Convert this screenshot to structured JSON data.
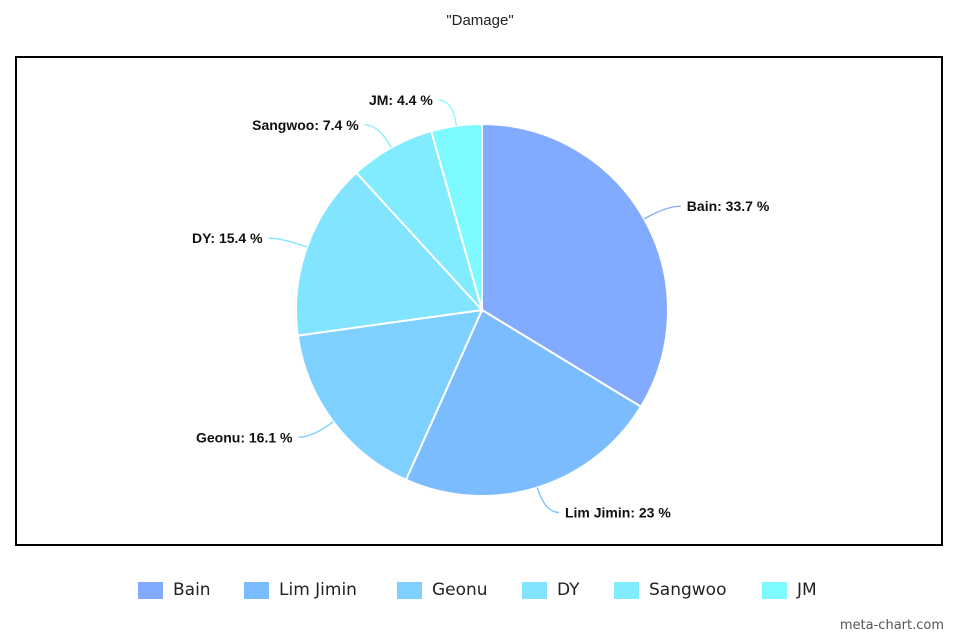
{
  "chart_data": {
    "type": "pie",
    "title": "\"Damage\"",
    "slices": [
      {
        "label": "Bain",
        "value": 33.7,
        "display": "Bain: 33.7 %",
        "color": "#82aaff"
      },
      {
        "label": "Lim Jimin",
        "value": 23,
        "display": "Lim Jimin: 23 %",
        "color": "#7bbcff"
      },
      {
        "label": "Geonu",
        "value": 16.1,
        "display": "Geonu: 16.1 %",
        "color": "#7dd0ff"
      },
      {
        "label": "DY",
        "value": 15.4,
        "display": "DY: 15.4 %",
        "color": "#82e4ff"
      },
      {
        "label": "Sangwoo",
        "value": 7.4,
        "display": "Sangwoo: 7.4 %",
        "color": "#82ecff"
      },
      {
        "label": "JM",
        "value": 4.4,
        "display": "JM: 4.4 %",
        "color": "#7dfaff"
      }
    ],
    "legend_position": "bottom"
  },
  "watermark": "meta-chart.com"
}
